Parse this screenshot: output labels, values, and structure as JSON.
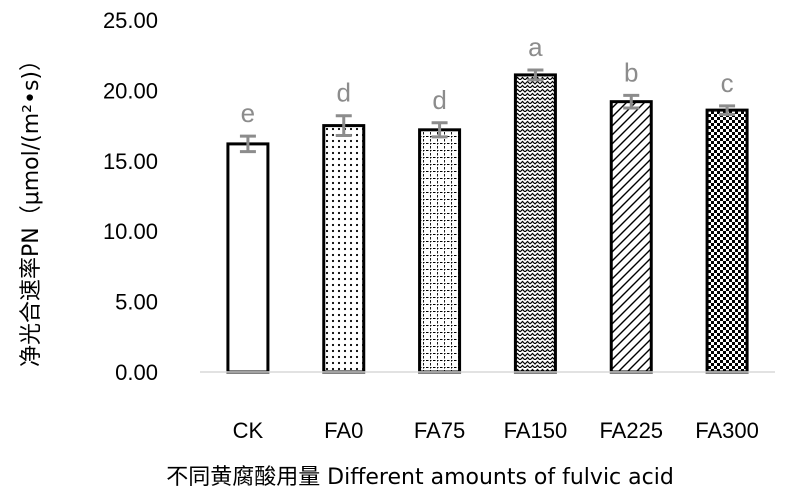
{
  "chart_data": {
    "type": "bar",
    "title": "",
    "xlabel": "不同黄腐酸用量 Different amounts of fulvic acid",
    "ylabel": "净光合速率PN（μmol/(m²•s)）",
    "ylim": [
      0,
      25
    ],
    "yticks": [
      "0.00",
      "5.00",
      "10.00",
      "15.00",
      "20.00",
      "25.00"
    ],
    "grid": false,
    "categories": [
      "CK",
      "FA0",
      "FA75",
      "FA150",
      "FA225",
      "FA300"
    ],
    "series": [
      {
        "values": [
          16.2,
          17.5,
          17.2,
          21.1,
          19.2,
          18.6
        ],
        "errors": [
          0.55,
          0.7,
          0.5,
          0.35,
          0.45,
          0.3
        ],
        "significance": [
          "e",
          "d",
          "d",
          "a",
          "b",
          "c"
        ],
        "patterns": [
          "none",
          "dots",
          "grid",
          "wave",
          "diagonal",
          "checker"
        ]
      }
    ],
    "colors": {
      "bar_stroke": "#000000",
      "bar_fill": "#ffffff",
      "error_bar": "#8c8c8c",
      "sig_text": "#8c8c8c"
    }
  }
}
